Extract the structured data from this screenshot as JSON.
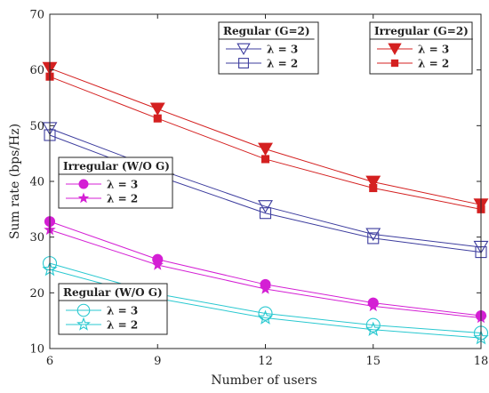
{
  "chart_data": {
    "type": "line",
    "xlabel": "Number of users",
    "ylabel": "Sum rate (bps/Hz)",
    "xlim": [
      6,
      18
    ],
    "ylim": [
      10,
      70
    ],
    "xticks": [
      6,
      9,
      12,
      15,
      18
    ],
    "yticks": [
      10,
      20,
      30,
      40,
      50,
      60,
      70
    ],
    "grid": false,
    "x": [
      6,
      9,
      12,
      15,
      18
    ],
    "series": [
      {
        "name": "λ = 3",
        "group": "Irregular (G=2)",
        "color": "#d42020",
        "marker": "triangle-down-filled",
        "values": [
          60.3,
          53.0,
          45.8,
          39.9,
          35.8
        ]
      },
      {
        "name": "λ = 2",
        "group": "Irregular (G=2)",
        "color": "#d42020",
        "marker": "square-filled",
        "values": [
          58.8,
          51.3,
          44.0,
          38.8,
          35.0
        ]
      },
      {
        "name": "λ = 3",
        "group": "Regular (G=2)",
        "color": "#3d3d9e",
        "marker": "triangle-down-open",
        "values": [
          49.5,
          42.2,
          35.5,
          30.5,
          28.2
        ]
      },
      {
        "name": "λ = 2",
        "group": "Regular (G=2)",
        "color": "#3d3d9e",
        "marker": "square-open",
        "values": [
          48.3,
          41.0,
          34.3,
          29.8,
          27.3
        ]
      },
      {
        "name": "λ = 3",
        "group": "Irregular (W/O G)",
        "color": "#d41fd4",
        "marker": "circle-filled",
        "values": [
          32.8,
          26.0,
          21.5,
          18.2,
          15.9
        ]
      },
      {
        "name": "λ = 2",
        "group": "Irregular (W/O G)",
        "color": "#d41fd4",
        "marker": "star-filled",
        "values": [
          31.3,
          25.0,
          20.7,
          17.6,
          15.5
        ]
      },
      {
        "name": "λ = 3",
        "group": "Regular (W/O G)",
        "color": "#29c8d0",
        "marker": "circle-open",
        "values": [
          25.3,
          19.8,
          16.3,
          14.2,
          12.8
        ]
      },
      {
        "name": "λ = 2",
        "group": "Regular (W/O G)",
        "color": "#29c8d0",
        "marker": "star-open",
        "values": [
          24.2,
          19.0,
          15.5,
          13.4,
          11.9
        ]
      }
    ],
    "legends": [
      {
        "title": "Regular (G=2)",
        "position": "top-center",
        "series": [
          2,
          3
        ]
      },
      {
        "title": "Irregular (G=2)",
        "position": "top-right",
        "series": [
          0,
          1
        ]
      },
      {
        "title": "Irregular (W/O G)",
        "position": "middle-left",
        "series": [
          4,
          5
        ]
      },
      {
        "title": "Regular (W/O G)",
        "position": "bottom-left",
        "series": [
          6,
          7
        ]
      }
    ]
  }
}
